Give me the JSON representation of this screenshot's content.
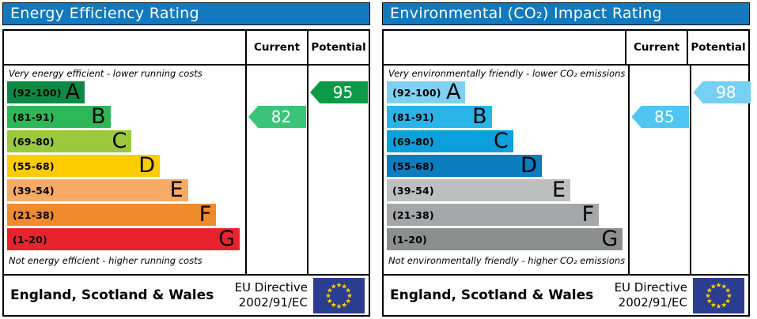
{
  "panels": [
    {
      "title": "Energy Efficiency Rating",
      "header_color": "#1279be",
      "columns": {
        "current": "Current",
        "potential": "Potential"
      },
      "top_caption": "Very energy efficient - lower running costs",
      "bottom_caption": "Not energy efficient - higher running costs",
      "bands": [
        {
          "range": "(92-100)",
          "letter": "A",
          "color": "#0b8a44",
          "width_pct": 33
        },
        {
          "range": "(81-91)",
          "letter": "B",
          "color": "#2eb757",
          "width_pct": 44
        },
        {
          "range": "(69-80)",
          "letter": "C",
          "color": "#9bc93e",
          "width_pct": 53
        },
        {
          "range": "(55-68)",
          "letter": "D",
          "color": "#fccc00",
          "width_pct": 65
        },
        {
          "range": "(39-54)",
          "letter": "E",
          "color": "#f6aa66",
          "width_pct": 77
        },
        {
          "range": "(21-38)",
          "letter": "F",
          "color": "#ef8b2c",
          "width_pct": 89
        },
        {
          "range": "(1-20)",
          "letter": "G",
          "color": "#e9232d",
          "width_pct": 99
        }
      ],
      "current": {
        "value": "82",
        "band_index": 1,
        "color": "#39c47a"
      },
      "potential": {
        "value": "95",
        "band_index": 0,
        "color": "#0d9a47"
      },
      "footer": {
        "region": "England, Scotland & Wales",
        "directive_line1": "EU Directive",
        "directive_line2": "2002/91/EC"
      }
    },
    {
      "title": "Environmental (CO₂) Impact Rating",
      "header_color": "#1279be",
      "columns": {
        "current": "Current",
        "potential": "Potential"
      },
      "top_caption": "Very environmentally friendly - lower CO₂ emissions",
      "bottom_caption": "Not environmentally friendly - higher CO₂ emissions",
      "bands": [
        {
          "range": "(92-100)",
          "letter": "A",
          "color": "#7fd1f3",
          "width_pct": 33
        },
        {
          "range": "(81-91)",
          "letter": "B",
          "color": "#29b5e8",
          "width_pct": 44
        },
        {
          "range": "(69-80)",
          "letter": "C",
          "color": "#0ba0dc",
          "width_pct": 53
        },
        {
          "range": "(55-68)",
          "letter": "D",
          "color": "#0b7cc0",
          "width_pct": 65
        },
        {
          "range": "(39-54)",
          "letter": "E",
          "color": "#bcbec0",
          "width_pct": 77
        },
        {
          "range": "(21-38)",
          "letter": "F",
          "color": "#a4a6a8",
          "width_pct": 89
        },
        {
          "range": "(1-20)",
          "letter": "G",
          "color": "#8c8e90",
          "width_pct": 99
        }
      ],
      "current": {
        "value": "85",
        "band_index": 1,
        "color": "#4ec6f1"
      },
      "potential": {
        "value": "98",
        "band_index": 0,
        "color": "#76d0f4"
      },
      "footer": {
        "region": "England, Scotland & Wales",
        "directive_line1": "EU Directive",
        "directive_line2": "2002/91/EC"
      }
    }
  ],
  "eu_flag": {
    "background": "#2b3d90",
    "star_color": "#ffcc00"
  },
  "chart_data": [
    {
      "type": "bar",
      "title": "Energy Efficiency Rating",
      "categories": [
        "A",
        "B",
        "C",
        "D",
        "E",
        "F",
        "G"
      ],
      "category_ranges": [
        "92-100",
        "81-91",
        "69-80",
        "55-68",
        "39-54",
        "21-38",
        "1-20"
      ],
      "bar_length_pct": [
        33,
        44,
        53,
        65,
        77,
        89,
        99
      ],
      "bar_colors": [
        "#0b8a44",
        "#2eb757",
        "#9bc93e",
        "#fccc00",
        "#f6aa66",
        "#ef8b2c",
        "#e9232d"
      ],
      "series": [
        {
          "name": "Current",
          "value": 82,
          "band": "B",
          "color": "#39c47a"
        },
        {
          "name": "Potential",
          "value": 95,
          "band": "A",
          "color": "#0d9a47"
        }
      ],
      "value_range": [
        1,
        100
      ],
      "top_caption": "Very energy efficient - lower running costs",
      "bottom_caption": "Not energy efficient - higher running costs",
      "footer": "England, Scotland & Wales",
      "directive": "EU Directive 2002/91/EC"
    },
    {
      "type": "bar",
      "title": "Environmental (CO₂) Impact Rating",
      "categories": [
        "A",
        "B",
        "C",
        "D",
        "E",
        "F",
        "G"
      ],
      "category_ranges": [
        "92-100",
        "81-91",
        "69-80",
        "55-68",
        "39-54",
        "21-38",
        "1-20"
      ],
      "bar_length_pct": [
        33,
        44,
        53,
        65,
        77,
        89,
        99
      ],
      "bar_colors": [
        "#7fd1f3",
        "#29b5e8",
        "#0ba0dc",
        "#0b7cc0",
        "#bcbec0",
        "#a4a6a8",
        "#8c8e90"
      ],
      "series": [
        {
          "name": "Current",
          "value": 85,
          "band": "B",
          "color": "#4ec6f1"
        },
        {
          "name": "Potential",
          "value": 98,
          "band": "A",
          "color": "#76d0f4"
        }
      ],
      "value_range": [
        1,
        100
      ],
      "top_caption": "Very environmentally friendly - lower CO₂ emissions",
      "bottom_caption": "Not environmentally friendly - higher CO₂ emissions",
      "footer": "England, Scotland & Wales",
      "directive": "EU Directive 2002/91/EC"
    }
  ]
}
